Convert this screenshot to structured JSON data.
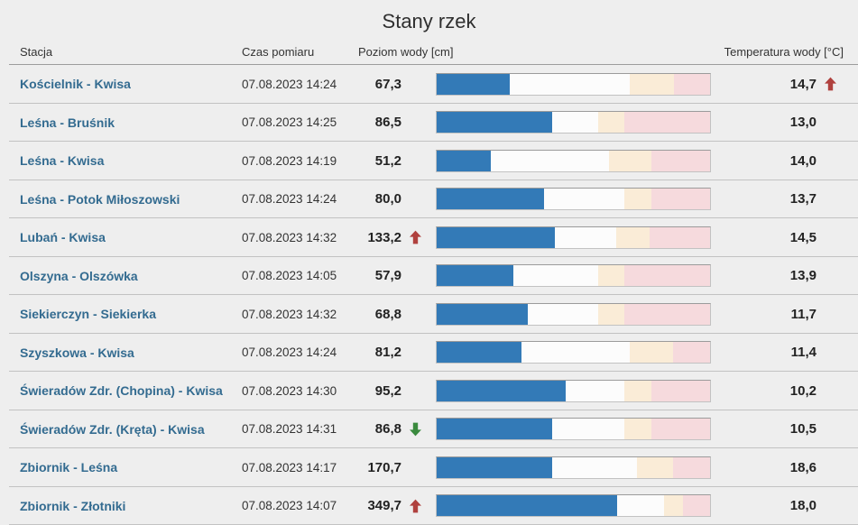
{
  "title": "Stany rzek",
  "colors": {
    "accent_blue": "#337ab7",
    "warning_zone": "#faecd7",
    "alarm_zone": "#f6dadd",
    "trend_up": "#b0413e",
    "trend_down": "#3a8a3e",
    "station_link": "#336b90"
  },
  "table": {
    "columns": {
      "station": "Stacja",
      "time": "Czas pomiaru",
      "level": "Poziom wody [cm]",
      "temperature": "Temperatura wody [°C]"
    },
    "rows": [
      {
        "station": "Kościelnik - Kwisa",
        "time": "07.08.2023 14:24",
        "level": "67,3",
        "level_trend": null,
        "level_pct": 26.6,
        "warning_pct": 70.5,
        "alarm_pct": 86.9,
        "temperature": "14,7",
        "temp_trend": "up"
      },
      {
        "station": "Leśna - Bruśnik",
        "time": "07.08.2023 14:25",
        "level": "86,5",
        "level_trend": null,
        "level_pct": 42.3,
        "warning_pct": 59.0,
        "alarm_pct": 68.5,
        "temperature": "13,0",
        "temp_trend": null
      },
      {
        "station": "Leśna - Kwisa",
        "time": "07.08.2023 14:19",
        "level": "51,2",
        "level_trend": null,
        "level_pct": 19.7,
        "warning_pct": 63.0,
        "alarm_pct": 78.7,
        "temperature": "14,0",
        "temp_trend": null
      },
      {
        "station": "Leśna - Potok Miłoszowski",
        "time": "07.08.2023 14:24",
        "level": "80,0",
        "level_trend": null,
        "level_pct": 39.3,
        "warning_pct": 68.5,
        "alarm_pct": 78.7,
        "temperature": "13,7",
        "temp_trend": null
      },
      {
        "station": "Lubań - Kwisa",
        "time": "07.08.2023 14:32",
        "level": "133,2",
        "level_trend": "up",
        "level_pct": 43.3,
        "warning_pct": 65.6,
        "alarm_pct": 78.0,
        "temperature": "14,5",
        "temp_trend": null
      },
      {
        "station": "Olszyna - Olszówka",
        "time": "07.08.2023 14:05",
        "level": "57,9",
        "level_trend": null,
        "level_pct": 28.2,
        "warning_pct": 59.0,
        "alarm_pct": 68.5,
        "temperature": "13,9",
        "temp_trend": null
      },
      {
        "station": "Siekierczyn - Siekierka",
        "time": "07.08.2023 14:32",
        "level": "68,8",
        "level_trend": null,
        "level_pct": 33.4,
        "warning_pct": 59.0,
        "alarm_pct": 68.5,
        "temperature": "11,7",
        "temp_trend": null
      },
      {
        "station": "Szyszkowa - Kwisa",
        "time": "07.08.2023 14:24",
        "level": "81,2",
        "level_trend": null,
        "level_pct": 31.1,
        "warning_pct": 70.5,
        "alarm_pct": 86.6,
        "temperature": "11,4",
        "temp_trend": null
      },
      {
        "station": "Świeradów Zdr. (Chopina) - Kwisa",
        "time": "07.08.2023 14:30",
        "level": "95,2",
        "level_trend": null,
        "level_pct": 47.2,
        "warning_pct": 68.5,
        "alarm_pct": 78.7,
        "temperature": "10,2",
        "temp_trend": null
      },
      {
        "station": "Świeradów Zdr. (Kręta) - Kwisa",
        "time": "07.08.2023 14:31",
        "level": "86,8",
        "level_trend": "down",
        "level_pct": 42.3,
        "warning_pct": 68.5,
        "alarm_pct": 78.7,
        "temperature": "10,5",
        "temp_trend": null
      },
      {
        "station": "Zbiornik - Leśna",
        "time": "07.08.2023 14:17",
        "level": "170,7",
        "level_trend": null,
        "level_pct": 42.3,
        "warning_pct": 73.4,
        "alarm_pct": 86.6,
        "temperature": "18,6",
        "temp_trend": null
      },
      {
        "station": "Zbiornik - Złotniki",
        "time": "07.08.2023 14:07",
        "level": "349,7",
        "level_trend": "up",
        "level_pct": 65.9,
        "warning_pct": 83.3,
        "alarm_pct": 90.2,
        "temperature": "18,0",
        "temp_trend": null
      }
    ]
  }
}
